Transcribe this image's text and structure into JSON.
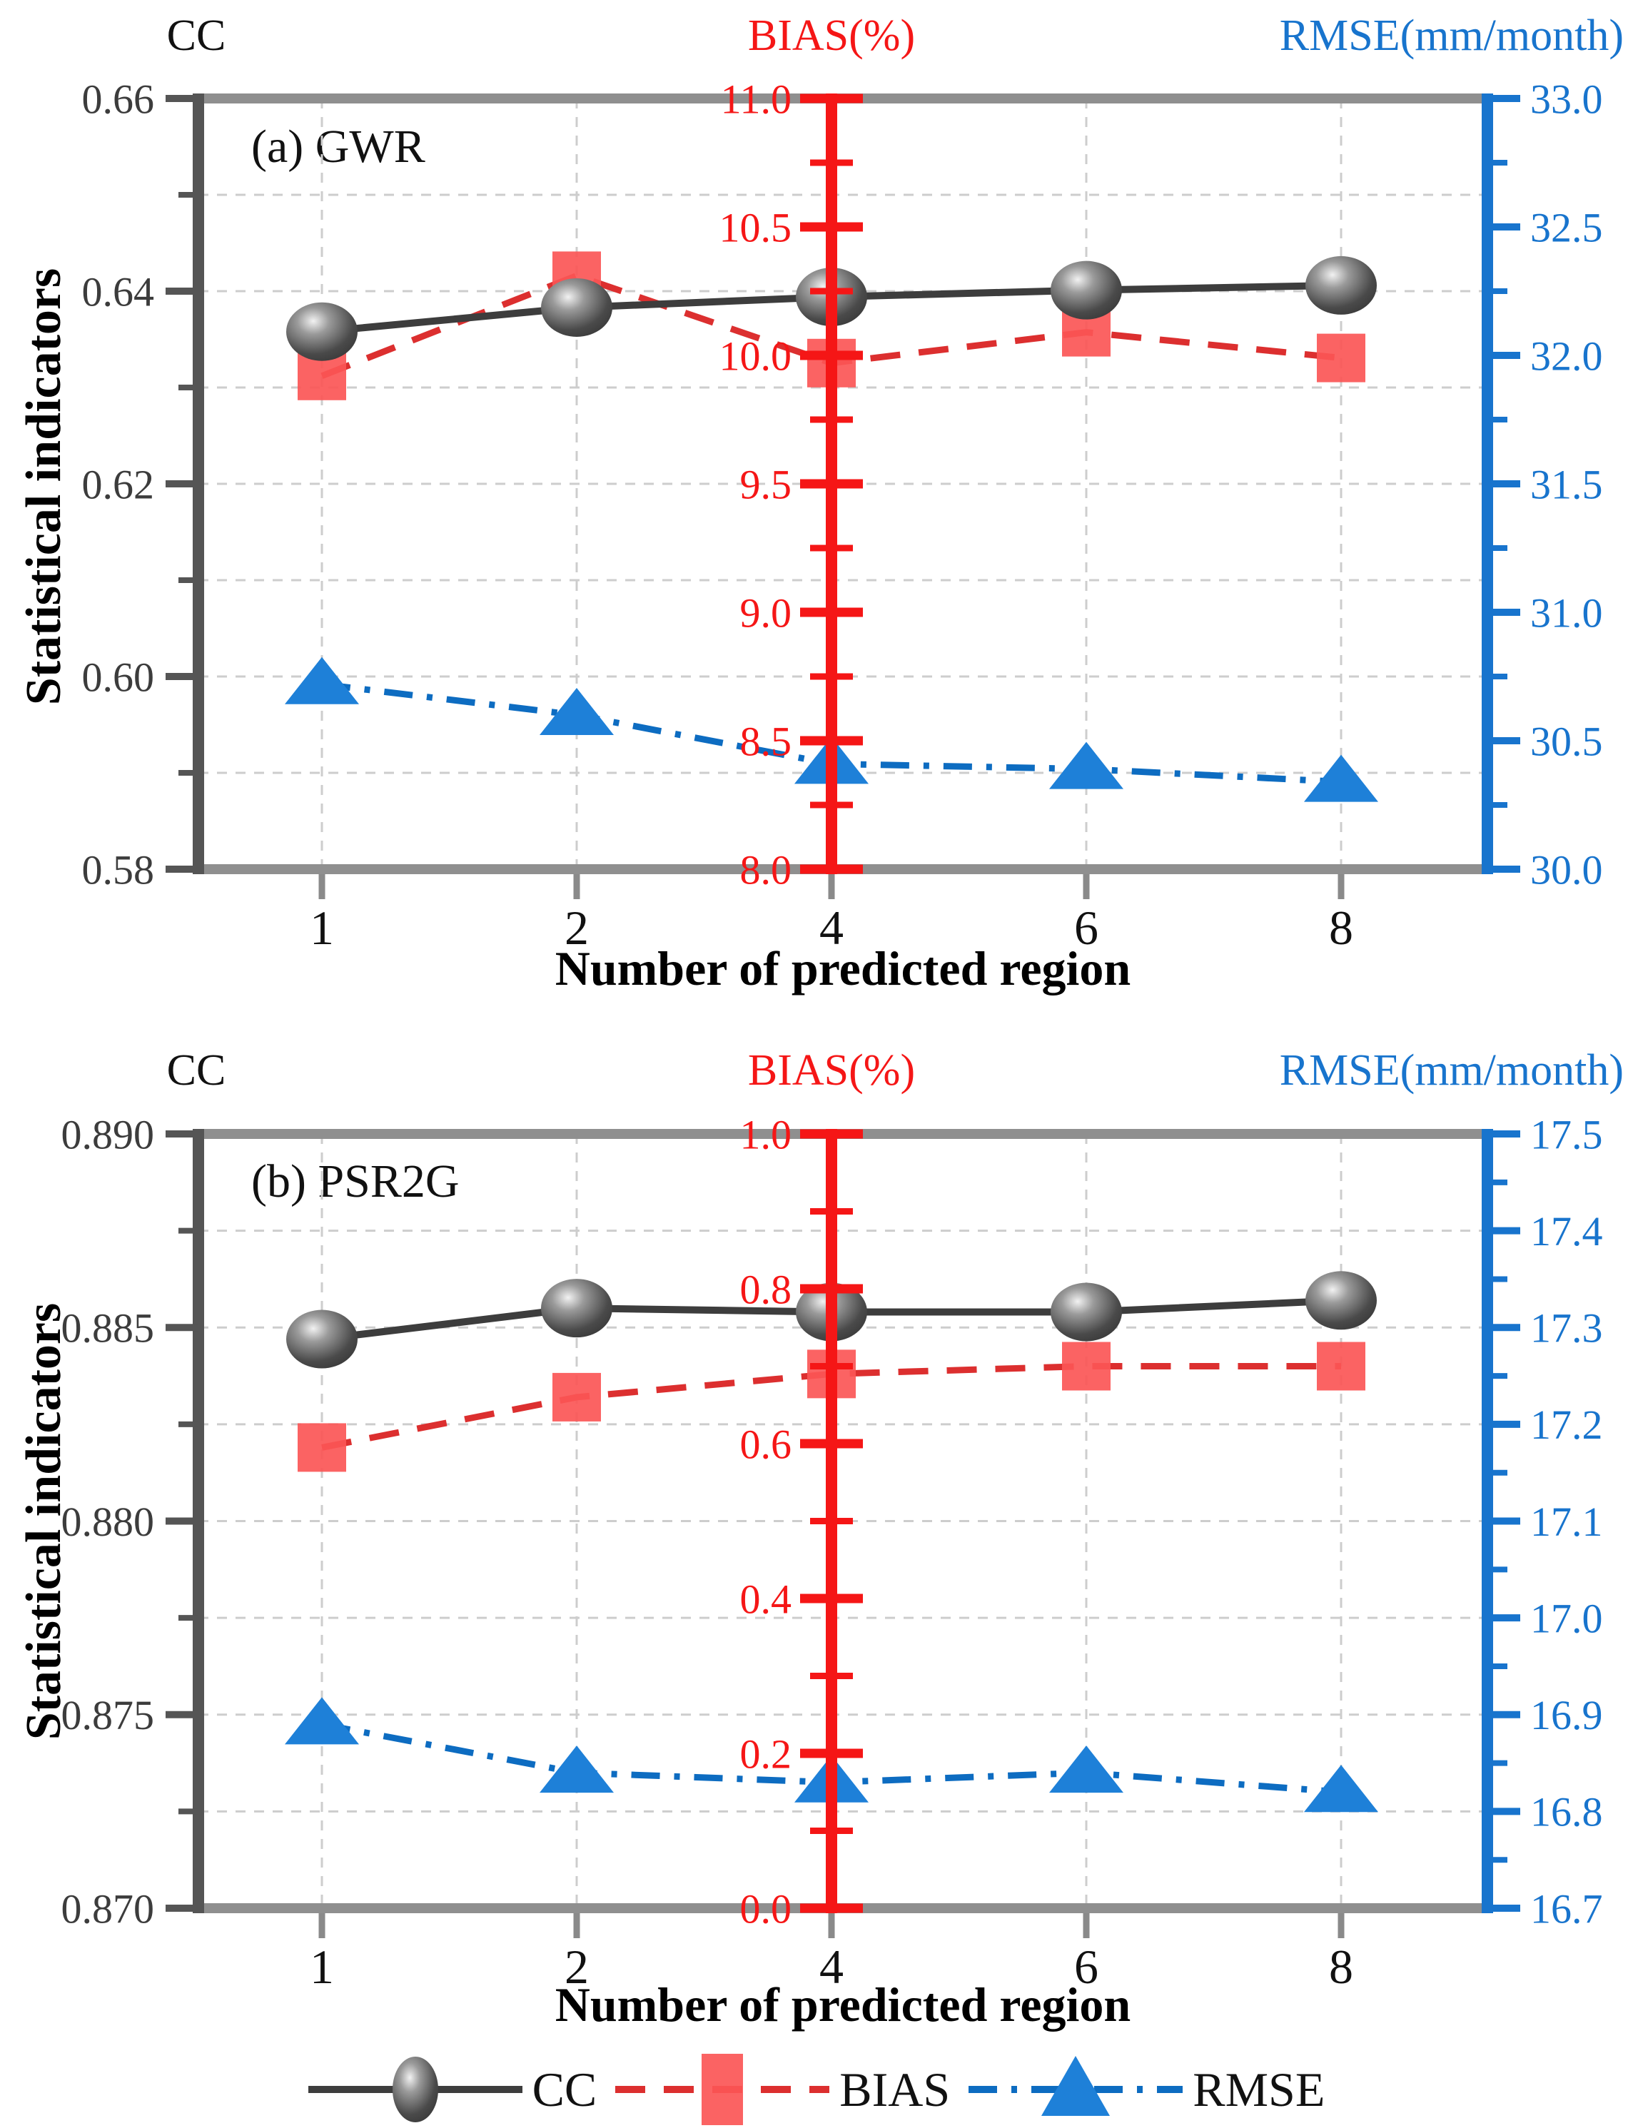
{
  "figure": {
    "y_axis_title": "Statistical indicators",
    "x_axis_title": "Number of predicted region",
    "legend": {
      "items": [
        {
          "label": "CC"
        },
        {
          "label": "BIAS"
        },
        {
          "label": "RMSE"
        }
      ]
    }
  },
  "colors": {
    "cc_line": "#3d3d3d",
    "cc_marker_dark": "#4a4a4a",
    "cc_marker_light": "#f2f2f2",
    "cc_text": "#3c3c3c",
    "bias_line": "#dc2f2f",
    "bias_marker": "#fb5656",
    "bias_axis": "#f51616",
    "rmse_line": "#0d6cc1",
    "rmse_marker": "#1e80d8",
    "rmse_axis": "#1874cd",
    "frame": "#8f8f8f",
    "axis_dark": "#555555",
    "grid": "#cdcdcd",
    "xtick": "#8a8a8a",
    "xtick_text": "#111111"
  },
  "chart_data": [
    {
      "type": "line",
      "panel": "a",
      "panel_label": "(a) GWR",
      "xlabel": "Number of predicted region",
      "x_categories": [
        "1",
        "2",
        "4",
        "6",
        "8"
      ],
      "axes": {
        "cc": {
          "title": "CC",
          "min": 0.58,
          "max": 0.66,
          "major": 0.02,
          "minor": 0.01,
          "labels": [
            "0.58",
            "0.60",
            "0.62",
            "0.64",
            "0.66"
          ]
        },
        "bias": {
          "title": "BIAS(%)",
          "min": 8.0,
          "max": 11.0,
          "major": 0.5,
          "minor": 0.25,
          "labels": [
            "8.0",
            "8.5",
            "9.0",
            "9.5",
            "10.0",
            "10.5",
            "11.0"
          ]
        },
        "rmse": {
          "title": "RMSE(mm/month)",
          "min": 30.0,
          "max": 33.0,
          "major": 0.5,
          "minor": 0.25,
          "labels": [
            "30.0",
            "30.5",
            "31.0",
            "31.5",
            "32.0",
            "32.5",
            "33.0"
          ]
        }
      },
      "series": [
        {
          "name": "CC",
          "axis": "cc",
          "values": [
            0.6358,
            0.6383,
            0.6394,
            0.6401,
            0.6406
          ]
        },
        {
          "name": "BIAS",
          "axis": "bias",
          "values": [
            9.92,
            10.31,
            9.97,
            10.09,
            9.99
          ]
        },
        {
          "name": "RMSE",
          "axis": "rmse",
          "values": [
            30.72,
            30.6,
            30.41,
            30.39,
            30.34
          ]
        }
      ]
    },
    {
      "type": "line",
      "panel": "b",
      "panel_label": "(b) PSR2G",
      "xlabel": "Number of predicted region",
      "x_categories": [
        "1",
        "2",
        "4",
        "6",
        "8"
      ],
      "axes": {
        "cc": {
          "title": "CC",
          "min": 0.87,
          "max": 0.89,
          "major": 0.005,
          "minor": 0.0025,
          "labels": [
            "0.870",
            "0.875",
            "0.880",
            "0.885",
            "0.890"
          ]
        },
        "bias": {
          "title": "BIAS(%)",
          "min": 0.0,
          "max": 1.0,
          "major": 0.2,
          "minor": 0.1,
          "labels": [
            "0.0",
            "0.2",
            "0.4",
            "0.6",
            "0.8",
            "1.0"
          ]
        },
        "rmse": {
          "title": "RMSE(mm/month)",
          "min": 16.7,
          "max": 17.5,
          "major": 0.1,
          "minor": 0.05,
          "labels": [
            "16.7",
            "16.8",
            "16.9",
            "17.0",
            "17.1",
            "17.2",
            "17.3",
            "17.4",
            "17.5"
          ]
        }
      },
      "series": [
        {
          "name": "CC",
          "axis": "cc",
          "values": [
            0.8847,
            0.8855,
            0.8854,
            0.8854,
            0.8857
          ]
        },
        {
          "name": "BIAS",
          "axis": "bias",
          "values": [
            0.595,
            0.66,
            0.69,
            0.7,
            0.7
          ]
        },
        {
          "name": "RMSE",
          "axis": "rmse",
          "values": [
            16.89,
            16.84,
            16.83,
            16.84,
            16.82
          ]
        }
      ]
    }
  ]
}
